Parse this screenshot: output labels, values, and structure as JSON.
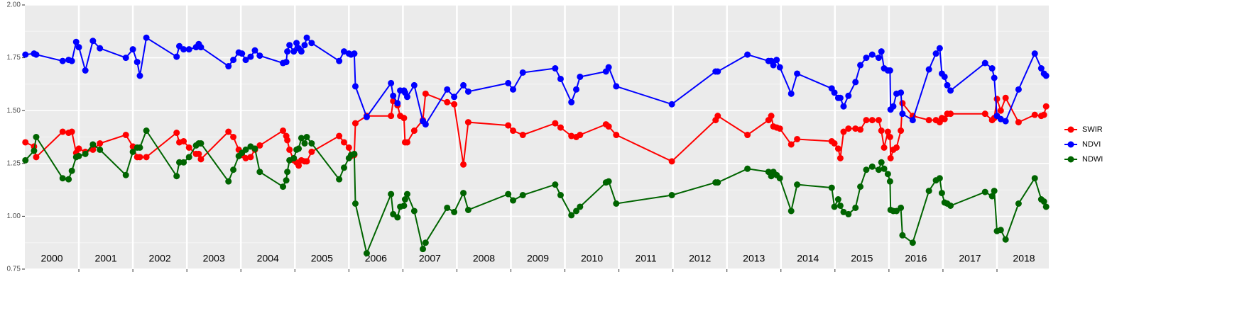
{
  "chart_data": {
    "type": "line",
    "x": [
      2000.01,
      2000.17,
      2000.21,
      2000.7,
      2000.81,
      2000.87,
      2000.95,
      2001.0,
      2001.12,
      2001.26,
      2001.39,
      2001.87,
      2002.0,
      2002.08,
      2002.13,
      2002.25,
      2002.81,
      2002.86,
      2002.94,
      2003.04,
      2003.17,
      2003.22,
      2003.26,
      2003.77,
      2003.86,
      2003.96,
      2004.02,
      2004.09,
      2004.18,
      2004.26,
      2004.35,
      2004.78,
      2004.84,
      2004.86,
      2004.9,
      2004.98,
      2005.03,
      2005.07,
      2005.12,
      2005.18,
      2005.22,
      2005.31,
      2005.82,
      2005.91,
      2006.0,
      2006.04,
      2006.1,
      2006.12,
      2006.33,
      2006.78,
      2006.82,
      2006.9,
      2006.95,
      2007.02,
      2007.04,
      2007.08,
      2007.21,
      2007.37,
      2007.42,
      2007.82,
      2007.95,
      2008.12,
      2008.21,
      2008.95,
      2009.04,
      2009.22,
      2009.82,
      2009.92,
      2010.12,
      2010.21,
      2010.28,
      2010.76,
      2010.81,
      2010.95,
      2011.98,
      2012.79,
      2012.83,
      2013.38,
      2013.77,
      2013.82,
      2013.86,
      2013.92,
      2013.98,
      2014.19,
      2014.3,
      2014.94,
      2014.99,
      2015.06,
      2015.1,
      2015.16,
      2015.25,
      2015.38,
      2015.47,
      2015.58,
      2015.69,
      2015.81,
      2015.86,
      2015.91,
      2015.98,
      2016.02,
      2016.03,
      2016.08,
      2016.14,
      2016.22,
      2016.25,
      2016.44,
      2016.74,
      2016.87,
      2016.94,
      2016.98,
      2017.03,
      2017.08,
      2017.14,
      2017.78,
      2017.91,
      2017.95,
      2018.0,
      2018.07,
      2018.16,
      2018.4,
      2018.7,
      2018.82,
      2018.87,
      2018.91
    ],
    "series": [
      {
        "name": "SWIR",
        "color": "#ff0000",
        "values": [
          1.35,
          1.33,
          1.28,
          1.4,
          1.395,
          1.4,
          1.3,
          1.32,
          1.305,
          1.315,
          1.345,
          1.385,
          1.33,
          1.28,
          1.28,
          1.28,
          1.395,
          1.35,
          1.355,
          1.325,
          1.295,
          1.295,
          1.27,
          1.4,
          1.375,
          1.315,
          1.29,
          1.275,
          1.28,
          1.315,
          1.335,
          1.405,
          1.38,
          1.36,
          1.315,
          1.265,
          1.255,
          1.24,
          1.265,
          1.26,
          1.26,
          1.305,
          1.38,
          1.35,
          1.325,
          1.285,
          1.29,
          1.44,
          1.475,
          1.475,
          1.545,
          1.525,
          1.475,
          1.465,
          1.35,
          1.35,
          1.405,
          1.455,
          1.58,
          1.54,
          1.53,
          1.245,
          1.445,
          1.43,
          1.405,
          1.385,
          1.44,
          1.42,
          1.38,
          1.375,
          1.385,
          1.435,
          1.425,
          1.385,
          1.26,
          1.455,
          1.475,
          1.385,
          1.455,
          1.475,
          1.425,
          1.42,
          1.415,
          1.34,
          1.365,
          1.355,
          1.345,
          1.32,
          1.275,
          1.4,
          1.415,
          1.415,
          1.41,
          1.455,
          1.455,
          1.455,
          1.405,
          1.325,
          1.4,
          1.375,
          1.275,
          1.315,
          1.325,
          1.405,
          1.535,
          1.475,
          1.455,
          1.455,
          1.445,
          1.465,
          1.46,
          1.485,
          1.485,
          1.485,
          1.455,
          1.465,
          1.555,
          1.5,
          1.56,
          1.445,
          1.48,
          1.475,
          1.48,
          1.52
        ]
      },
      {
        "name": "NDVI",
        "color": "#0000ff",
        "values": [
          1.765,
          1.77,
          1.765,
          1.735,
          1.74,
          1.735,
          1.825,
          1.8,
          1.69,
          1.83,
          1.795,
          1.75,
          1.79,
          1.73,
          1.665,
          1.845,
          1.755,
          1.805,
          1.79,
          1.79,
          1.8,
          1.815,
          1.8,
          1.71,
          1.74,
          1.775,
          1.77,
          1.74,
          1.755,
          1.785,
          1.76,
          1.725,
          1.73,
          1.78,
          1.81,
          1.78,
          1.82,
          1.795,
          1.78,
          1.81,
          1.845,
          1.82,
          1.735,
          1.78,
          1.77,
          1.765,
          1.77,
          1.615,
          1.47,
          1.63,
          1.57,
          1.535,
          1.595,
          1.595,
          1.585,
          1.565,
          1.62,
          1.45,
          1.435,
          1.6,
          1.565,
          1.62,
          1.59,
          1.63,
          1.6,
          1.68,
          1.7,
          1.65,
          1.54,
          1.6,
          1.66,
          1.685,
          1.705,
          1.615,
          1.53,
          1.685,
          1.685,
          1.765,
          1.735,
          1.735,
          1.715,
          1.74,
          1.705,
          1.58,
          1.675,
          1.605,
          1.585,
          1.56,
          1.56,
          1.52,
          1.57,
          1.635,
          1.715,
          1.75,
          1.765,
          1.75,
          1.78,
          1.7,
          1.69,
          1.69,
          1.505,
          1.52,
          1.58,
          1.585,
          1.485,
          1.455,
          1.695,
          1.77,
          1.795,
          1.675,
          1.66,
          1.62,
          1.595,
          1.725,
          1.7,
          1.655,
          1.475,
          1.46,
          1.45,
          1.6,
          1.77,
          1.7,
          1.675,
          1.665
        ]
      },
      {
        "name": "NDWI",
        "color": "#006400",
        "values": [
          1.265,
          1.31,
          1.375,
          1.18,
          1.175,
          1.215,
          1.28,
          1.285,
          1.295,
          1.34,
          1.315,
          1.195,
          1.305,
          1.325,
          1.325,
          1.405,
          1.19,
          1.255,
          1.255,
          1.28,
          1.335,
          1.345,
          1.345,
          1.165,
          1.22,
          1.285,
          1.3,
          1.315,
          1.33,
          1.32,
          1.21,
          1.14,
          1.17,
          1.21,
          1.265,
          1.275,
          1.315,
          1.32,
          1.37,
          1.345,
          1.375,
          1.345,
          1.175,
          1.23,
          1.275,
          1.29,
          1.295,
          1.06,
          0.825,
          1.105,
          1.01,
          0.995,
          1.045,
          1.05,
          1.08,
          1.105,
          1.025,
          0.845,
          0.875,
          1.04,
          1.02,
          1.11,
          1.03,
          1.105,
          1.075,
          1.1,
          1.15,
          1.1,
          1.005,
          1.025,
          1.045,
          1.16,
          1.165,
          1.06,
          1.1,
          1.16,
          1.16,
          1.225,
          1.21,
          1.19,
          1.21,
          1.195,
          1.18,
          1.025,
          1.15,
          1.135,
          1.045,
          1.08,
          1.05,
          1.02,
          1.01,
          1.04,
          1.14,
          1.22,
          1.235,
          1.22,
          1.255,
          1.225,
          1.2,
          1.165,
          1.03,
          1.025,
          1.025,
          1.04,
          0.91,
          0.875,
          1.12,
          1.17,
          1.18,
          1.11,
          1.065,
          1.06,
          1.05,
          1.115,
          1.095,
          1.12,
          0.93,
          0.935,
          0.89,
          1.06,
          1.18,
          1.08,
          1.07,
          1.045
        ]
      }
    ],
    "xlim": [
      2000,
      2018.96
    ],
    "xgrid": [
      2001,
      2002,
      2003,
      2004,
      2005,
      2006,
      2007,
      2008,
      2009,
      2010,
      2011,
      2012,
      2013,
      2014,
      2015,
      2016,
      2017,
      2018
    ],
    "year_labels": [
      {
        "value": 2000.5,
        "label": "2000"
      },
      {
        "value": 2001.5,
        "label": "2001"
      },
      {
        "value": 2002.5,
        "label": "2002"
      },
      {
        "value": 2003.5,
        "label": "2003"
      },
      {
        "value": 2004.5,
        "label": "2004"
      },
      {
        "value": 2005.5,
        "label": "2005"
      },
      {
        "value": 2006.5,
        "label": "2006"
      },
      {
        "value": 2007.5,
        "label": "2007"
      },
      {
        "value": 2008.5,
        "label": "2008"
      },
      {
        "value": 2009.5,
        "label": "2009"
      },
      {
        "value": 2010.5,
        "label": "2010"
      },
      {
        "value": 2011.5,
        "label": "2011"
      },
      {
        "value": 2012.5,
        "label": "2012"
      },
      {
        "value": 2013.5,
        "label": "2013"
      },
      {
        "value": 2014.5,
        "label": "2014"
      },
      {
        "value": 2015.5,
        "label": "2015"
      },
      {
        "value": 2016.5,
        "label": "2016"
      },
      {
        "value": 2017.5,
        "label": "2017"
      },
      {
        "value": 2018.5,
        "label": "2018"
      }
    ],
    "ylim": [
      0.75,
      2.0
    ],
    "yticks": [
      0.75,
      {
        "value": 1.0,
        "label": "1.00"
      },
      1.25,
      {
        "value": 1.5,
        "label": "1.50"
      },
      1.75,
      {
        "value": 2.0,
        "label": "2.00"
      }
    ],
    "grid": true
  }
}
